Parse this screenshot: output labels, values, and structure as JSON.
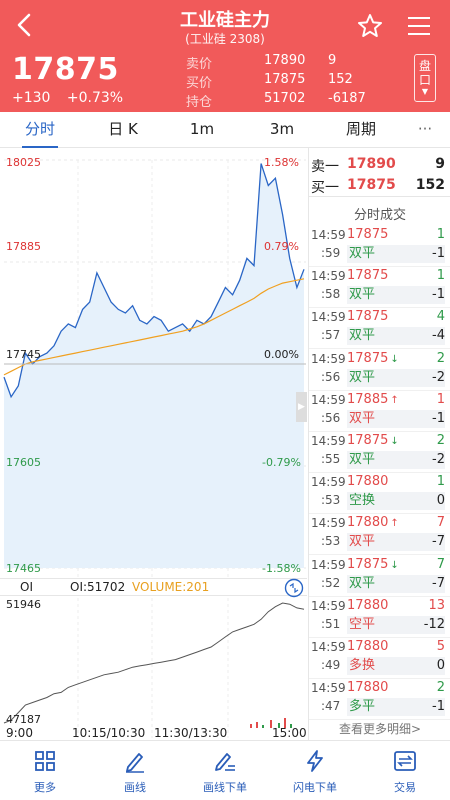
{
  "header": {
    "title": "工业硅主力",
    "subtitle": "(工业硅 2308)",
    "price": "17875",
    "change": "+130",
    "change_pct": "+0.73%",
    "quotes": [
      {
        "label": "卖价",
        "value": "17890",
        "num": "9"
      },
      {
        "label": "买价",
        "value": "17875",
        "num": "152"
      },
      {
        "label": "持仓",
        "value": "51702",
        "num": "-6187"
      }
    ],
    "pankou": "盘口"
  },
  "tabs": [
    "分时",
    "日 K",
    "1m",
    "3m",
    "周期",
    "···"
  ],
  "chart": {
    "y_labels_left": [
      "18025",
      "17885",
      "17745",
      "17605",
      "17465"
    ],
    "y_labels_right": [
      "1.58%",
      "0.79%",
      "0.00%",
      "-0.79%",
      "-1.58%"
    ],
    "oi_label": "OI",
    "oi_value": "OI:51702",
    "volume": "VOLUME:201",
    "oi_top": "51946",
    "oi_bottom": "47187",
    "x_labels": [
      "9:00",
      "10:15/10:30",
      "11:30/13:30",
      "15:00"
    ]
  },
  "chart_data": {
    "type": "line",
    "ylim": [
      17465,
      18025
    ],
    "reference_price": 17745,
    "series": [
      {
        "values": [
          17727,
          17700,
          17715,
          17760,
          17745,
          17755,
          17760,
          17770,
          17790,
          17800,
          17795,
          17820,
          17830,
          17870,
          17850,
          17830,
          17820,
          17815,
          17825,
          17805,
          17800,
          17810,
          17805,
          17790,
          17795,
          17800,
          17790,
          17805,
          17800,
          17810,
          17830,
          17850,
          17840,
          17860,
          17890,
          17880,
          18020,
          17990,
          18000,
          17950,
          17890,
          17850,
          17875
        ]
      },
      {
        "values": [
          17730,
          17735,
          17740,
          17745,
          17748,
          17750,
          17752,
          17754,
          17756,
          17758,
          17760,
          17762,
          17764,
          17766,
          17768,
          17770,
          17772,
          17774,
          17776,
          17778,
          17780,
          17782,
          17784,
          17786,
          17788,
          17790,
          17793,
          17796,
          17800,
          17805,
          17810,
          17815,
          17820,
          17825,
          17830,
          17835,
          17842,
          17848,
          17852,
          17856,
          17858,
          17860,
          17862
        ]
      }
    ]
  },
  "oi_chart_data": {
    "type": "line",
    "ylim": [
      47187,
      51946
    ],
    "values": [
      47187,
      47300,
      47600,
      47900,
      48000,
      48100,
      48200,
      48350,
      48400,
      48600,
      48700,
      48800,
      48900,
      49000,
      49100,
      49150,
      49200,
      49300,
      49400,
      49450,
      49500,
      49550,
      49600,
      49650,
      49700,
      49800,
      49900,
      50000,
      50100,
      50200,
      50400,
      50600,
      50800,
      50900,
      51000,
      51100,
      51300,
      51600,
      51800,
      51946,
      51900,
      51750,
      51702
    ]
  },
  "right_panel": {
    "ask": {
      "label": "卖一",
      "price": "17890",
      "qty": "9"
    },
    "bid": {
      "label": "买一",
      "price": "17875",
      "qty": "152"
    },
    "title": "分时成交",
    "trades": [
      {
        "time": "14:59",
        "sec": ":59",
        "price": "17875",
        "arrow": "",
        "type": "双平",
        "qty": "1",
        "oi": "-1",
        "color": "green"
      },
      {
        "time": "14:59",
        "sec": ":58",
        "price": "17875",
        "arrow": "",
        "type": "双平",
        "qty": "1",
        "oi": "-1",
        "color": "green"
      },
      {
        "time": "14:59",
        "sec": ":57",
        "price": "17875",
        "arrow": "",
        "type": "双平",
        "qty": "4",
        "oi": "-4",
        "color": "green"
      },
      {
        "time": "14:59",
        "sec": ":56",
        "price": "17875",
        "arrow": "↓",
        "type": "双平",
        "qty": "2",
        "oi": "-2",
        "color": "green"
      },
      {
        "time": "14:59",
        "sec": ":56",
        "price": "17885",
        "arrow": "↑",
        "type": "双平",
        "qty": "1",
        "oi": "-1",
        "color": "red"
      },
      {
        "time": "14:59",
        "sec": ":55",
        "price": "17875",
        "arrow": "↓",
        "type": "双平",
        "qty": "2",
        "oi": "-2",
        "color": "green"
      },
      {
        "time": "14:59",
        "sec": ":53",
        "price": "17880",
        "arrow": "",
        "type": "空换",
        "qty": "1",
        "oi": "0",
        "color": "green"
      },
      {
        "time": "14:59",
        "sec": ":53",
        "price": "17880",
        "arrow": "↑",
        "type": "双平",
        "qty": "7",
        "oi": "-7",
        "color": "red"
      },
      {
        "time": "14:59",
        "sec": ":52",
        "price": "17875",
        "arrow": "↓",
        "type": "双平",
        "qty": "7",
        "oi": "-7",
        "color": "green"
      },
      {
        "time": "14:59",
        "sec": ":51",
        "price": "17880",
        "arrow": "",
        "type": "空平",
        "qty": "13",
        "oi": "-12",
        "color": "red"
      },
      {
        "time": "14:59",
        "sec": ":49",
        "price": "17880",
        "arrow": "",
        "type": "多换",
        "qty": "5",
        "oi": "0",
        "color": "red"
      },
      {
        "time": "14:59",
        "sec": ":47",
        "price": "17880",
        "arrow": "",
        "type": "多平",
        "qty": "2",
        "oi": "-1",
        "color": "green"
      }
    ],
    "more": "查看更多明细>"
  },
  "toolbar": [
    {
      "label": "更多",
      "icon": "grid-icon"
    },
    {
      "label": "画线",
      "icon": "pen-icon"
    },
    {
      "label": "画线下单",
      "icon": "pen-order-icon"
    },
    {
      "label": "闪电下单",
      "icon": "lightning-icon"
    },
    {
      "label": "交易",
      "icon": "exchange-icon"
    }
  ],
  "colors": {
    "header_bg": "#f15a5a",
    "accent": "#2a66c6",
    "up": "#e24b4b",
    "down": "#2f9a4a",
    "avg_line": "#f0a020"
  }
}
